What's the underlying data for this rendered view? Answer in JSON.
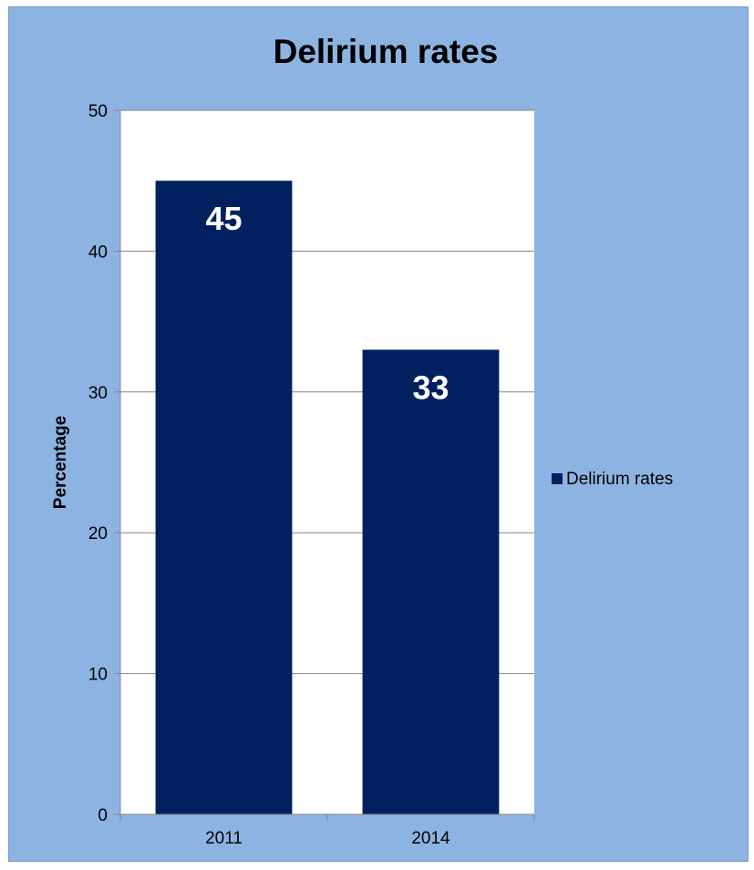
{
  "chart_data": {
    "type": "bar",
    "title": "Delirium rates",
    "xlabel": "",
    "ylabel": "Percentage",
    "categories": [
      "2011",
      "2014"
    ],
    "series": [
      {
        "name": "Delirium rates",
        "values": [
          45,
          33
        ],
        "color": "#002060"
      }
    ],
    "data_labels": [
      "45",
      "33"
    ],
    "ylim": [
      0,
      50
    ],
    "y_ticks": [
      "0",
      "10",
      "20",
      "30",
      "40",
      "50"
    ],
    "y_tick_values": [
      0,
      10,
      20,
      30,
      40,
      50
    ],
    "grid": true,
    "legend_position": "right",
    "colors": {
      "chart_background": "#8db3e2",
      "plot_background": "#ffffff",
      "bar": "#002060",
      "data_label": "#ffffff"
    }
  }
}
